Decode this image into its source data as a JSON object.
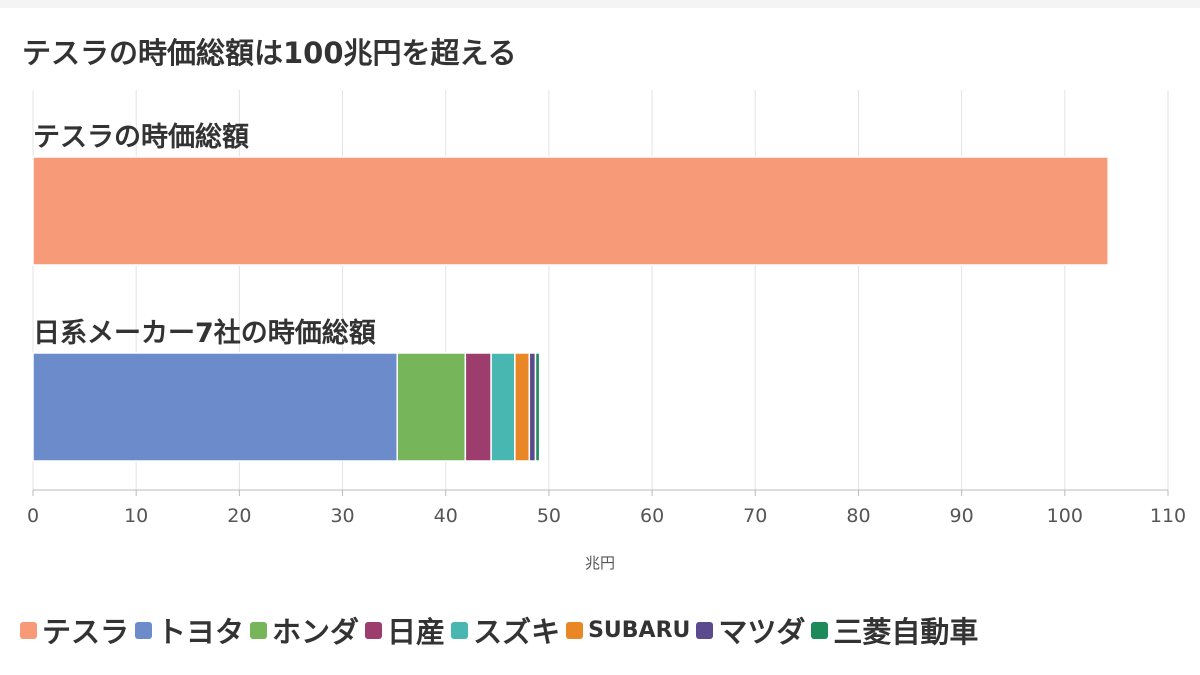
{
  "title": "テスラの時価総額は100兆円を超える",
  "chart_data": {
    "type": "bar",
    "orientation": "horizontal",
    "stacked": true,
    "title": "テスラの時価総額は100兆円を超える",
    "xlabel": "兆円",
    "ylabel": "",
    "xlim": [
      0,
      110
    ],
    "x_ticks": [
      0,
      10,
      20,
      30,
      40,
      50,
      60,
      70,
      80,
      90,
      100,
      110
    ],
    "grid": true,
    "legend_position": "bottom",
    "categories": [
      "テスラの時価総額",
      "日系メーカー7社の時価総額"
    ],
    "series": [
      {
        "name": "テスラ",
        "color": "#f79a77",
        "values": [
          104.2,
          0
        ]
      },
      {
        "name": "トヨタ",
        "color": "#6b8bcb",
        "values": [
          0,
          35.3
        ]
      },
      {
        "name": "ホンダ",
        "color": "#76b55a",
        "values": [
          0,
          6.6
        ]
      },
      {
        "name": "日産",
        "color": "#9c3d6e",
        "values": [
          0,
          2.5
        ]
      },
      {
        "name": "スズキ",
        "color": "#48b6b1",
        "values": [
          0,
          2.3
        ]
      },
      {
        "name": "SUBARU",
        "color": "#e98625",
        "values": [
          0,
          1.4
        ]
      },
      {
        "name": "マツダ",
        "color": "#5c4a8e",
        "values": [
          0,
          0.6
        ]
      },
      {
        "name": "三菱自動車",
        "color": "#1e8a5a",
        "values": [
          0,
          0.4
        ]
      }
    ]
  }
}
